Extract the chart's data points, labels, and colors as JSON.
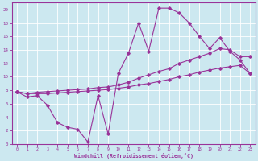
{
  "xlabel": "Windchill (Refroidissement éolien,°C)",
  "bg_color": "#cce8f0",
  "line_color": "#993399",
  "grid_color": "#ffffff",
  "xlim": [
    -0.5,
    23.5
  ],
  "ylim": [
    0,
    21
  ],
  "xticks": [
    0,
    1,
    2,
    3,
    4,
    5,
    6,
    7,
    8,
    9,
    10,
    11,
    12,
    13,
    14,
    15,
    16,
    17,
    18,
    19,
    20,
    21,
    22,
    23
  ],
  "yticks": [
    0,
    2,
    4,
    6,
    8,
    10,
    12,
    14,
    16,
    18,
    20
  ],
  "line1_x": [
    0,
    1,
    2,
    3,
    4,
    5,
    6,
    7,
    8,
    9,
    10,
    11,
    12,
    13,
    14,
    15,
    16,
    17,
    18,
    19,
    20,
    21,
    22,
    23
  ],
  "line1_y": [
    7.8,
    7.0,
    7.2,
    5.8,
    3.2,
    2.5,
    2.2,
    0.3,
    7.2,
    1.5,
    10.5,
    13.5,
    18.0,
    13.8,
    20.2,
    20.2,
    19.5,
    18.0,
    16.0,
    14.2,
    15.8,
    13.8,
    12.5,
    10.5
  ],
  "line2_x": [
    0,
    1,
    2,
    3,
    4,
    5,
    6,
    7,
    8,
    9,
    10,
    11,
    12,
    13,
    14,
    15,
    16,
    17,
    18,
    19,
    20,
    21,
    22,
    23
  ],
  "line2_y": [
    7.8,
    7.5,
    7.7,
    7.8,
    7.9,
    8.0,
    8.1,
    8.2,
    8.4,
    8.5,
    8.8,
    9.2,
    9.8,
    10.3,
    10.8,
    11.2,
    12.0,
    12.5,
    13.0,
    13.5,
    14.2,
    14.0,
    13.0,
    13.0
  ],
  "line3_x": [
    0,
    1,
    2,
    3,
    4,
    5,
    6,
    7,
    8,
    9,
    10,
    11,
    12,
    13,
    14,
    15,
    16,
    17,
    18,
    19,
    20,
    21,
    22,
    23
  ],
  "line3_y": [
    7.8,
    7.5,
    7.5,
    7.5,
    7.6,
    7.7,
    7.8,
    7.9,
    8.0,
    8.1,
    8.3,
    8.5,
    8.8,
    9.0,
    9.3,
    9.6,
    10.0,
    10.3,
    10.7,
    11.0,
    11.3,
    11.5,
    11.7,
    10.5
  ]
}
